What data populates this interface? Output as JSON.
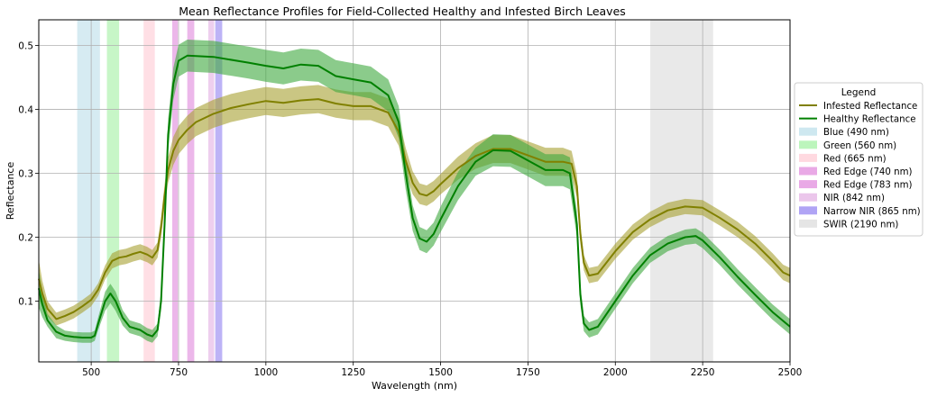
{
  "chart_data": {
    "type": "line",
    "title": "Mean Reflectance Profiles for Field-Collected Healthy and Infested Birch Leaves",
    "xlabel": "Wavelength (nm)",
    "ylabel": "Reflectance",
    "xlim": [
      350,
      2500
    ],
    "ylim": [
      0.005,
      0.54
    ],
    "x_ticks": [
      500,
      750,
      1000,
      1250,
      1500,
      1750,
      2000,
      2250,
      2500
    ],
    "x_tick_labels": [
      "500",
      "750",
      "1000",
      "1250",
      "1500",
      "1750",
      "2000",
      "2250",
      "2500"
    ],
    "y_ticks": [
      0.1,
      0.2,
      0.3,
      0.4,
      0.5
    ],
    "y_tick_labels": [
      "0.1",
      "0.2",
      "0.3",
      "0.4",
      "0.5"
    ],
    "grid": true,
    "legend": {
      "title": "Legend",
      "placement": "outside-right"
    },
    "series": [
      {
        "name": "Infested Reflectance",
        "color": "#808000",
        "band_color": "#a6a030",
        "points": [
          [
            350,
            0.135,
            0.03
          ],
          [
            360,
            0.112,
            0.02
          ],
          [
            375,
            0.088,
            0.012
          ],
          [
            400,
            0.072,
            0.01
          ],
          [
            425,
            0.077,
            0.01
          ],
          [
            450,
            0.083,
            0.01
          ],
          [
            475,
            0.092,
            0.01
          ],
          [
            500,
            0.102,
            0.01
          ],
          [
            520,
            0.118,
            0.01
          ],
          [
            540,
            0.145,
            0.011
          ],
          [
            560,
            0.163,
            0.012
          ],
          [
            580,
            0.168,
            0.012
          ],
          [
            600,
            0.17,
            0.012
          ],
          [
            620,
            0.174,
            0.012
          ],
          [
            640,
            0.177,
            0.012
          ],
          [
            660,
            0.173,
            0.012
          ],
          [
            675,
            0.168,
            0.012
          ],
          [
            690,
            0.18,
            0.012
          ],
          [
            700,
            0.215,
            0.015
          ],
          [
            710,
            0.265,
            0.018
          ],
          [
            720,
            0.305,
            0.02
          ],
          [
            735,
            0.335,
            0.022
          ],
          [
            750,
            0.352,
            0.022
          ],
          [
            775,
            0.368,
            0.022
          ],
          [
            800,
            0.38,
            0.022
          ],
          [
            850,
            0.393,
            0.022
          ],
          [
            900,
            0.402,
            0.022
          ],
          [
            950,
            0.408,
            0.022
          ],
          [
            1000,
            0.413,
            0.022
          ],
          [
            1050,
            0.41,
            0.022
          ],
          [
            1100,
            0.414,
            0.022
          ],
          [
            1150,
            0.416,
            0.022
          ],
          [
            1200,
            0.409,
            0.022
          ],
          [
            1250,
            0.405,
            0.022
          ],
          [
            1300,
            0.405,
            0.022
          ],
          [
            1350,
            0.395,
            0.022
          ],
          [
            1380,
            0.365,
            0.022
          ],
          [
            1400,
            0.32,
            0.02
          ],
          [
            1420,
            0.285,
            0.018
          ],
          [
            1440,
            0.268,
            0.016
          ],
          [
            1460,
            0.265,
            0.016
          ],
          [
            1480,
            0.272,
            0.016
          ],
          [
            1500,
            0.283,
            0.016
          ],
          [
            1550,
            0.308,
            0.018
          ],
          [
            1600,
            0.327,
            0.02
          ],
          [
            1650,
            0.338,
            0.022
          ],
          [
            1700,
            0.338,
            0.022
          ],
          [
            1750,
            0.328,
            0.022
          ],
          [
            1800,
            0.318,
            0.022
          ],
          [
            1850,
            0.318,
            0.022
          ],
          [
            1875,
            0.315,
            0.02
          ],
          [
            1890,
            0.28,
            0.018
          ],
          [
            1900,
            0.205,
            0.015
          ],
          [
            1910,
            0.16,
            0.012
          ],
          [
            1925,
            0.14,
            0.012
          ],
          [
            1950,
            0.143,
            0.012
          ],
          [
            2000,
            0.178,
            0.012
          ],
          [
            2050,
            0.208,
            0.012
          ],
          [
            2100,
            0.228,
            0.012
          ],
          [
            2150,
            0.242,
            0.012
          ],
          [
            2200,
            0.248,
            0.012
          ],
          [
            2250,
            0.246,
            0.012
          ],
          [
            2300,
            0.23,
            0.012
          ],
          [
            2350,
            0.212,
            0.012
          ],
          [
            2400,
            0.19,
            0.012
          ],
          [
            2450,
            0.163,
            0.012
          ],
          [
            2480,
            0.145,
            0.012
          ],
          [
            2500,
            0.14,
            0.012
          ]
        ]
      },
      {
        "name": "Healthy Reflectance",
        "color": "#008000",
        "band_color": "#3ea83e",
        "points": [
          [
            350,
            0.12,
            0.03
          ],
          [
            360,
            0.095,
            0.02
          ],
          [
            375,
            0.07,
            0.01
          ],
          [
            400,
            0.052,
            0.01
          ],
          [
            425,
            0.046,
            0.008
          ],
          [
            450,
            0.044,
            0.008
          ],
          [
            475,
            0.043,
            0.008
          ],
          [
            500,
            0.043,
            0.008
          ],
          [
            510,
            0.046,
            0.008
          ],
          [
            520,
            0.065,
            0.01
          ],
          [
            540,
            0.1,
            0.015
          ],
          [
            555,
            0.112,
            0.015
          ],
          [
            570,
            0.1,
            0.015
          ],
          [
            590,
            0.074,
            0.012
          ],
          [
            610,
            0.06,
            0.01
          ],
          [
            640,
            0.055,
            0.01
          ],
          [
            660,
            0.048,
            0.01
          ],
          [
            675,
            0.045,
            0.01
          ],
          [
            690,
            0.055,
            0.01
          ],
          [
            700,
            0.1,
            0.015
          ],
          [
            710,
            0.22,
            0.02
          ],
          [
            720,
            0.36,
            0.025
          ],
          [
            735,
            0.44,
            0.025
          ],
          [
            750,
            0.476,
            0.025
          ],
          [
            775,
            0.484,
            0.025
          ],
          [
            850,
            0.482,
            0.025
          ],
          [
            950,
            0.473,
            0.025
          ],
          [
            1000,
            0.468,
            0.025
          ],
          [
            1050,
            0.464,
            0.025
          ],
          [
            1100,
            0.47,
            0.025
          ],
          [
            1150,
            0.468,
            0.025
          ],
          [
            1200,
            0.452,
            0.025
          ],
          [
            1250,
            0.447,
            0.025
          ],
          [
            1300,
            0.442,
            0.025
          ],
          [
            1350,
            0.422,
            0.025
          ],
          [
            1380,
            0.38,
            0.025
          ],
          [
            1400,
            0.3,
            0.025
          ],
          [
            1420,
            0.23,
            0.02
          ],
          [
            1440,
            0.198,
            0.018
          ],
          [
            1460,
            0.193,
            0.018
          ],
          [
            1480,
            0.205,
            0.018
          ],
          [
            1500,
            0.228,
            0.02
          ],
          [
            1550,
            0.28,
            0.022
          ],
          [
            1600,
            0.318,
            0.022
          ],
          [
            1650,
            0.336,
            0.025
          ],
          [
            1700,
            0.335,
            0.025
          ],
          [
            1750,
            0.32,
            0.025
          ],
          [
            1800,
            0.305,
            0.025
          ],
          [
            1850,
            0.305,
            0.025
          ],
          [
            1870,
            0.3,
            0.025
          ],
          [
            1890,
            0.22,
            0.02
          ],
          [
            1900,
            0.11,
            0.015
          ],
          [
            1910,
            0.065,
            0.012
          ],
          [
            1925,
            0.055,
            0.012
          ],
          [
            1950,
            0.06,
            0.012
          ],
          [
            2000,
            0.1,
            0.012
          ],
          [
            2050,
            0.14,
            0.012
          ],
          [
            2100,
            0.172,
            0.012
          ],
          [
            2150,
            0.19,
            0.012
          ],
          [
            2200,
            0.2,
            0.012
          ],
          [
            2230,
            0.202,
            0.012
          ],
          [
            2250,
            0.195,
            0.012
          ],
          [
            2300,
            0.168,
            0.012
          ],
          [
            2350,
            0.138,
            0.012
          ],
          [
            2400,
            0.11,
            0.012
          ],
          [
            2450,
            0.083,
            0.012
          ],
          [
            2500,
            0.06,
            0.012
          ]
        ]
      }
    ],
    "bands": [
      {
        "name": "Blue (490 nm)",
        "x0": 460,
        "x1": 525,
        "color": "#add8e6"
      },
      {
        "name": "Green (560 nm)",
        "x0": 545,
        "x1": 580,
        "color": "#90ee90"
      },
      {
        "name": "Red (665 nm)",
        "x0": 650,
        "x1": 682,
        "color": "#ffc0cb"
      },
      {
        "name": "Red Edge (740 nm)",
        "x0": 732,
        "x1": 748,
        "color": "#da70d6"
      },
      {
        "name": "Red Edge (783 nm)",
        "x0": 775,
        "x1": 795,
        "color": "#da70d6"
      },
      {
        "name": "NIR (842 nm)",
        "x0": 835,
        "x1": 852,
        "color": "#dda0dd"
      },
      {
        "name": "Narrow NIR (865 nm)",
        "x0": 855,
        "x1": 875,
        "color": "#7b68ee"
      },
      {
        "name": "SWIR (2190 nm)",
        "x0": 2100,
        "x1": 2280,
        "color": "#d3d3d3"
      }
    ]
  }
}
